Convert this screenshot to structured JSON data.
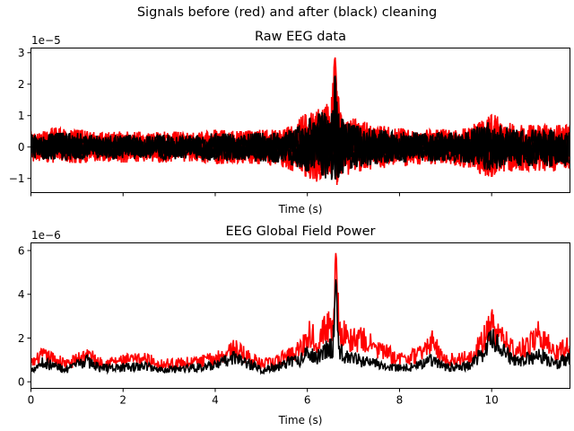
{
  "figure": {
    "suptitle": "Signals before (red) and after (black) cleaning"
  },
  "colors": {
    "before": "#ff0000",
    "after": "#000000",
    "axes": "#000000",
    "background": "#ffffff"
  },
  "chart_data": [
    {
      "type": "line",
      "title": "Raw EEG data",
      "xlabel": "Time (s)",
      "ylabel": "",
      "offset_label": "1e−5",
      "xlim": [
        0,
        11.7
      ],
      "ylim": [
        -1.45,
        3.15
      ],
      "y_scale_factor": 1e-05,
      "xticks": [
        0,
        2,
        4,
        6,
        8,
        10
      ],
      "xtick_labels_visible": false,
      "yticks": [
        -1,
        0,
        1,
        2,
        3
      ],
      "ytick_labels": [
        "−1",
        "0",
        "1",
        "2",
        "3"
      ],
      "grid": false,
      "legend": "none",
      "series": [
        {
          "color": "#ff0000",
          "description": "Raw multichannel EEG, before cleaning",
          "envelope": {
            "x": [
              0.0,
              0.5,
              1.0,
              1.5,
              2.0,
              2.5,
              3.0,
              3.5,
              4.0,
              4.5,
              5.0,
              5.5,
              5.9,
              6.2,
              6.4,
              6.55,
              6.6,
              6.65,
              6.8,
              7.0,
              7.5,
              8.0,
              8.5,
              9.0,
              9.5,
              9.8,
              10.0,
              10.2,
              10.5,
              11.0,
              11.7
            ],
            "upper": [
              0.5,
              0.6,
              0.55,
              0.45,
              0.5,
              0.45,
              0.5,
              0.45,
              0.55,
              0.5,
              0.55,
              0.55,
              1.0,
              1.3,
              1.5,
              2.0,
              2.95,
              1.7,
              1.0,
              0.9,
              0.7,
              0.6,
              0.55,
              0.55,
              0.6,
              0.95,
              1.1,
              0.9,
              0.7,
              0.7,
              0.7
            ],
            "lower": [
              -0.45,
              -0.5,
              -0.5,
              -0.45,
              -0.5,
              -0.45,
              -0.5,
              -0.45,
              -0.55,
              -0.5,
              -0.55,
              -0.65,
              -0.9,
              -1.1,
              -1.2,
              -1.25,
              -1.25,
              -1.2,
              -0.95,
              -0.8,
              -0.7,
              -0.6,
              -0.55,
              -0.55,
              -0.65,
              -0.9,
              -0.95,
              -0.85,
              -0.75,
              -0.75,
              -0.8
            ]
          }
        },
        {
          "color": "#000000",
          "description": "EEG after cleaning",
          "envelope": {
            "x": [
              0.0,
              0.5,
              1.0,
              1.5,
              2.0,
              2.5,
              3.0,
              3.5,
              4.0,
              4.5,
              5.0,
              5.5,
              5.9,
              6.2,
              6.4,
              6.55,
              6.6,
              6.65,
              6.8,
              7.0,
              7.5,
              8.0,
              8.5,
              9.0,
              9.5,
              9.8,
              10.0,
              10.2,
              10.5,
              11.0,
              11.7
            ],
            "upper": [
              0.4,
              0.45,
              0.45,
              0.35,
              0.4,
              0.35,
              0.4,
              0.35,
              0.45,
              0.4,
              0.45,
              0.45,
              0.8,
              1.0,
              1.2,
              1.6,
              2.35,
              1.3,
              0.8,
              0.7,
              0.55,
              0.5,
              0.45,
              0.45,
              0.5,
              0.75,
              0.9,
              0.7,
              0.55,
              0.55,
              0.55
            ],
            "lower": [
              -0.35,
              -0.4,
              -0.4,
              -0.35,
              -0.4,
              -0.35,
              -0.4,
              -0.35,
              -0.45,
              -0.4,
              -0.45,
              -0.5,
              -0.7,
              -0.9,
              -1.0,
              -1.05,
              -1.1,
              -1.0,
              -0.8,
              -0.65,
              -0.55,
              -0.5,
              -0.45,
              -0.45,
              -0.5,
              -0.7,
              -0.75,
              -0.65,
              -0.6,
              -0.6,
              -0.6
            ]
          }
        }
      ]
    },
    {
      "type": "line",
      "title": "EEG Global Field Power",
      "xlabel": "Time (s)",
      "ylabel": "",
      "offset_label": "1e−6",
      "xlim": [
        0,
        11.7
      ],
      "ylim": [
        -0.3,
        6.35
      ],
      "y_scale_factor": 1e-06,
      "xticks": [
        0,
        2,
        4,
        6,
        8,
        10
      ],
      "xtick_labels": [
        "0",
        "2",
        "4",
        "6",
        "8",
        "10"
      ],
      "yticks": [
        0,
        2,
        4,
        6
      ],
      "ytick_labels": [
        "0",
        "2",
        "4",
        "6"
      ],
      "grid": false,
      "legend": "none",
      "series": [
        {
          "color": "#ff0000",
          "description": "Global field power before cleaning",
          "keypoints": {
            "x": [
              0.0,
              0.25,
              0.5,
              0.8,
              1.2,
              1.5,
              2.0,
              2.5,
              2.8,
              3.5,
              4.0,
              4.4,
              5.0,
              5.3,
              5.6,
              5.9,
              6.0,
              6.2,
              6.4,
              6.55,
              6.62,
              6.7,
              6.9,
              7.2,
              7.5,
              8.0,
              8.4,
              8.7,
              9.0,
              9.5,
              9.8,
              10.0,
              10.2,
              10.5,
              10.8,
              11.0,
              11.4,
              11.7
            ],
            "y": [
              1.0,
              1.5,
              1.3,
              1.0,
              1.6,
              1.1,
              1.2,
              1.3,
              1.0,
              1.1,
              1.3,
              1.9,
              1.0,
              1.1,
              1.6,
              2.0,
              2.8,
              2.4,
              3.0,
              3.3,
              6.0,
              3.0,
              2.4,
              2.4,
              1.9,
              1.3,
              1.5,
              2.3,
              1.2,
              1.4,
              2.3,
              3.2,
              2.5,
              1.8,
              2.0,
              2.8,
              1.6,
              2.2
            ]
          }
        },
        {
          "color": "#000000",
          "description": "Global field power after cleaning",
          "keypoints": {
            "x": [
              0.0,
              0.25,
              0.5,
              0.8,
              1.2,
              1.5,
              2.0,
              2.5,
              2.8,
              3.5,
              4.0,
              4.4,
              5.0,
              5.3,
              5.6,
              5.9,
              6.0,
              6.2,
              6.4,
              6.55,
              6.62,
              6.7,
              6.9,
              7.2,
              7.5,
              8.0,
              8.4,
              8.7,
              9.0,
              9.5,
              9.8,
              10.0,
              10.2,
              10.5,
              10.8,
              11.0,
              11.4,
              11.7
            ],
            "y": [
              0.7,
              1.1,
              0.9,
              0.7,
              1.2,
              0.8,
              0.8,
              0.9,
              0.7,
              0.8,
              0.9,
              1.4,
              0.7,
              0.8,
              1.1,
              1.3,
              1.7,
              1.4,
              1.8,
              2.0,
              4.8,
              1.8,
              1.3,
              1.2,
              1.0,
              0.8,
              0.9,
              1.3,
              0.8,
              0.9,
              1.6,
              2.4,
              1.9,
              1.2,
              1.3,
              1.6,
              1.0,
              1.3
            ]
          }
        }
      ]
    }
  ]
}
